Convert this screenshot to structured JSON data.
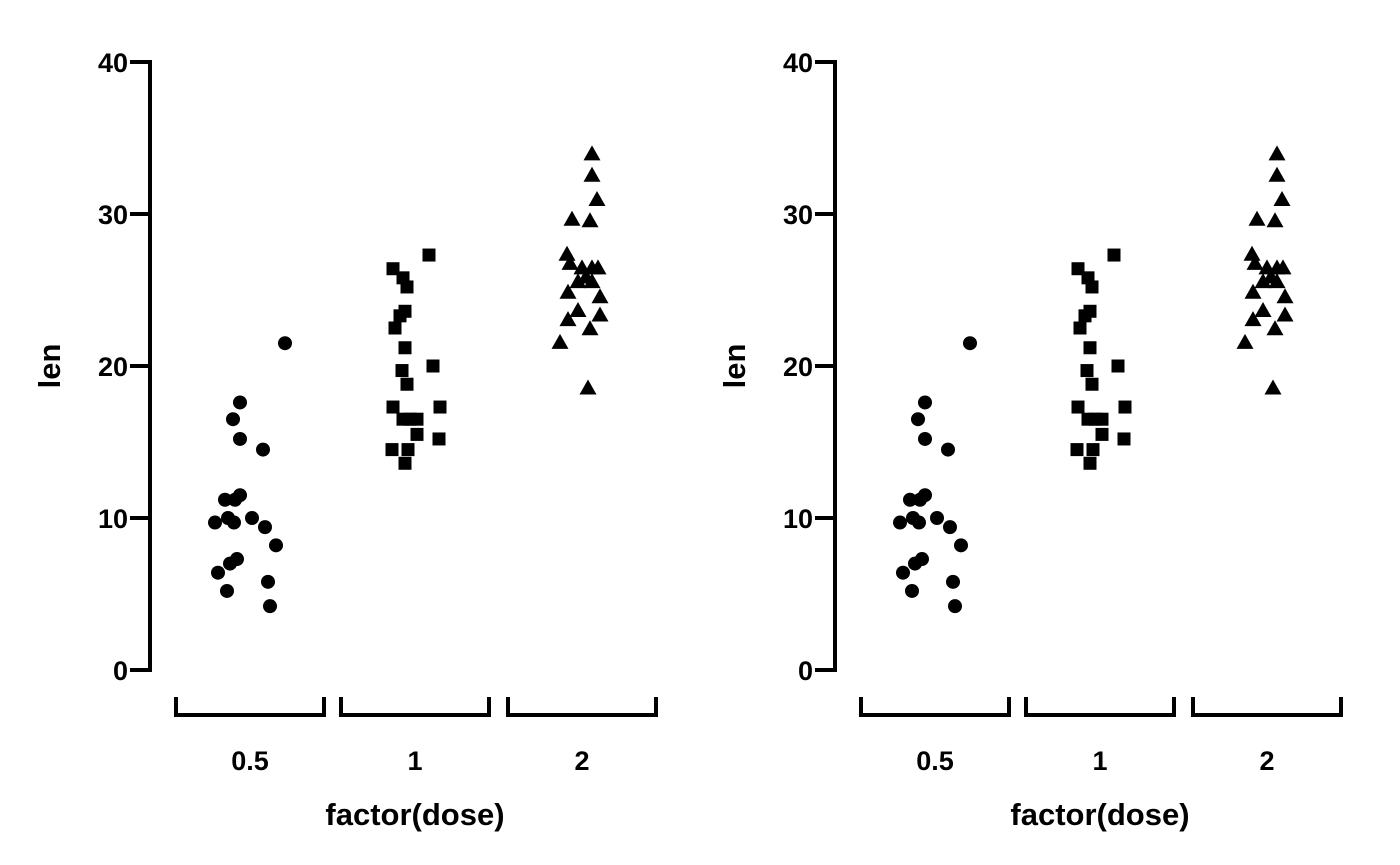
{
  "chart_data": [
    {
      "type": "scatter",
      "xlabel": "factor(dose)",
      "ylabel": "len",
      "categories": [
        "0.5",
        "1",
        "2"
      ],
      "ylim": [
        0,
        40
      ],
      "yticks": [
        0,
        10,
        20,
        30,
        40
      ],
      "ytick_labels": [
        "0",
        "10",
        "20",
        "30",
        "40"
      ],
      "grid": false,
      "series": [
        {
          "category": "0.5",
          "marker": "circle",
          "points": [
            {
              "jitter": 0.35,
              "y": 21.5
            },
            {
              "jitter": -0.1,
              "y": 17.6
            },
            {
              "jitter": -0.17,
              "y": 16.5
            },
            {
              "jitter": -0.1,
              "y": 15.2
            },
            {
              "jitter": 0.13,
              "y": 14.5
            },
            {
              "jitter": -0.1,
              "y": 11.5
            },
            {
              "jitter": -0.15,
              "y": 11.2
            },
            {
              "jitter": -0.25,
              "y": 11.2
            },
            {
              "jitter": -0.35,
              "y": 9.7
            },
            {
              "jitter": -0.22,
              "y": 10.0
            },
            {
              "jitter": -0.16,
              "y": 9.7
            },
            {
              "jitter": 0.02,
              "y": 10.0
            },
            {
              "jitter": 0.15,
              "y": 9.4
            },
            {
              "jitter": 0.26,
              "y": 8.2
            },
            {
              "jitter": -0.13,
              "y": 7.3
            },
            {
              "jitter": -0.2,
              "y": 7.0
            },
            {
              "jitter": -0.32,
              "y": 6.4
            },
            {
              "jitter": 0.18,
              "y": 5.8
            },
            {
              "jitter": -0.23,
              "y": 5.2
            },
            {
              "jitter": 0.2,
              "y": 4.2
            }
          ]
        },
        {
          "category": "1",
          "marker": "square",
          "points": [
            {
              "jitter": 0.14,
              "y": 27.3
            },
            {
              "jitter": -0.22,
              "y": 26.4
            },
            {
              "jitter": -0.12,
              "y": 25.8
            },
            {
              "jitter": -0.08,
              "y": 25.2
            },
            {
              "jitter": -0.1,
              "y": 23.6
            },
            {
              "jitter": -0.15,
              "y": 23.3
            },
            {
              "jitter": -0.2,
              "y": 22.5
            },
            {
              "jitter": -0.1,
              "y": 21.2
            },
            {
              "jitter": 0.18,
              "y": 20.0
            },
            {
              "jitter": -0.13,
              "y": 19.7
            },
            {
              "jitter": -0.08,
              "y": 18.8
            },
            {
              "jitter": -0.22,
              "y": 17.3
            },
            {
              "jitter": 0.25,
              "y": 17.3
            },
            {
              "jitter": -0.12,
              "y": 16.5
            },
            {
              "jitter": -0.05,
              "y": 16.5
            },
            {
              "jitter": 0.02,
              "y": 16.5
            },
            {
              "jitter": 0.02,
              "y": 15.5
            },
            {
              "jitter": 0.24,
              "y": 15.2
            },
            {
              "jitter": -0.23,
              "y": 14.5
            },
            {
              "jitter": -0.07,
              "y": 14.5
            },
            {
              "jitter": -0.1,
              "y": 13.6
            }
          ]
        },
        {
          "category": "2",
          "marker": "triangle",
          "points": [
            {
              "jitter": 0.1,
              "y": 33.9
            },
            {
              "jitter": 0.1,
              "y": 32.5
            },
            {
              "jitter": 0.15,
              "y": 30.9
            },
            {
              "jitter": -0.1,
              "y": 29.6
            },
            {
              "jitter": 0.08,
              "y": 29.5
            },
            {
              "jitter": -0.15,
              "y": 27.3
            },
            {
              "jitter": -0.12,
              "y": 26.7
            },
            {
              "jitter": 0.0,
              "y": 26.4
            },
            {
              "jitter": 0.1,
              "y": 26.4
            },
            {
              "jitter": 0.16,
              "y": 26.4
            },
            {
              "jitter": 0.04,
              "y": 25.8
            },
            {
              "jitter": -0.04,
              "y": 25.5
            },
            {
              "jitter": 0.1,
              "y": 25.5
            },
            {
              "jitter": -0.14,
              "y": 24.8
            },
            {
              "jitter": 0.18,
              "y": 24.5
            },
            {
              "jitter": -0.04,
              "y": 23.6
            },
            {
              "jitter": 0.18,
              "y": 23.3
            },
            {
              "jitter": -0.14,
              "y": 23.0
            },
            {
              "jitter": 0.08,
              "y": 22.4
            },
            {
              "jitter": -0.22,
              "y": 21.5
            },
            {
              "jitter": 0.06,
              "y": 18.5
            }
          ]
        }
      ]
    },
    {
      "type": "scatter",
      "xlabel": "factor(dose)",
      "ylabel": "len",
      "categories": [
        "0.5",
        "1",
        "2"
      ],
      "ylim": [
        0,
        40
      ],
      "yticks": [
        0,
        10,
        20,
        30,
        40
      ],
      "ytick_labels": [
        "0",
        "10",
        "20",
        "30",
        "40"
      ],
      "grid": false,
      "series": [
        {
          "category": "0.5",
          "marker": "circle",
          "points": [
            {
              "jitter": 0.35,
              "y": 21.5
            },
            {
              "jitter": -0.1,
              "y": 17.6
            },
            {
              "jitter": -0.17,
              "y": 16.5
            },
            {
              "jitter": -0.1,
              "y": 15.2
            },
            {
              "jitter": 0.13,
              "y": 14.5
            },
            {
              "jitter": -0.1,
              "y": 11.5
            },
            {
              "jitter": -0.15,
              "y": 11.2
            },
            {
              "jitter": -0.25,
              "y": 11.2
            },
            {
              "jitter": -0.35,
              "y": 9.7
            },
            {
              "jitter": -0.22,
              "y": 10.0
            },
            {
              "jitter": -0.16,
              "y": 9.7
            },
            {
              "jitter": 0.02,
              "y": 10.0
            },
            {
              "jitter": 0.15,
              "y": 9.4
            },
            {
              "jitter": 0.26,
              "y": 8.2
            },
            {
              "jitter": -0.13,
              "y": 7.3
            },
            {
              "jitter": -0.2,
              "y": 7.0
            },
            {
              "jitter": -0.32,
              "y": 6.4
            },
            {
              "jitter": 0.18,
              "y": 5.8
            },
            {
              "jitter": -0.23,
              "y": 5.2
            },
            {
              "jitter": 0.2,
              "y": 4.2
            }
          ]
        },
        {
          "category": "1",
          "marker": "square",
          "points": [
            {
              "jitter": 0.14,
              "y": 27.3
            },
            {
              "jitter": -0.22,
              "y": 26.4
            },
            {
              "jitter": -0.12,
              "y": 25.8
            },
            {
              "jitter": -0.08,
              "y": 25.2
            },
            {
              "jitter": -0.1,
              "y": 23.6
            },
            {
              "jitter": -0.15,
              "y": 23.3
            },
            {
              "jitter": -0.2,
              "y": 22.5
            },
            {
              "jitter": -0.1,
              "y": 21.2
            },
            {
              "jitter": 0.18,
              "y": 20.0
            },
            {
              "jitter": -0.13,
              "y": 19.7
            },
            {
              "jitter": -0.08,
              "y": 18.8
            },
            {
              "jitter": -0.22,
              "y": 17.3
            },
            {
              "jitter": 0.25,
              "y": 17.3
            },
            {
              "jitter": -0.12,
              "y": 16.5
            },
            {
              "jitter": -0.05,
              "y": 16.5
            },
            {
              "jitter": 0.02,
              "y": 16.5
            },
            {
              "jitter": 0.02,
              "y": 15.5
            },
            {
              "jitter": 0.24,
              "y": 15.2
            },
            {
              "jitter": -0.23,
              "y": 14.5
            },
            {
              "jitter": -0.07,
              "y": 14.5
            },
            {
              "jitter": -0.1,
              "y": 13.6
            }
          ]
        },
        {
          "category": "2",
          "marker": "triangle",
          "points": [
            {
              "jitter": 0.1,
              "y": 33.9
            },
            {
              "jitter": 0.1,
              "y": 32.5
            },
            {
              "jitter": 0.15,
              "y": 30.9
            },
            {
              "jitter": -0.1,
              "y": 29.6
            },
            {
              "jitter": 0.08,
              "y": 29.5
            },
            {
              "jitter": -0.15,
              "y": 27.3
            },
            {
              "jitter": -0.12,
              "y": 26.7
            },
            {
              "jitter": 0.0,
              "y": 26.4
            },
            {
              "jitter": 0.1,
              "y": 26.4
            },
            {
              "jitter": 0.16,
              "y": 26.4
            },
            {
              "jitter": 0.04,
              "y": 25.8
            },
            {
              "jitter": -0.04,
              "y": 25.5
            },
            {
              "jitter": 0.1,
              "y": 25.5
            },
            {
              "jitter": -0.14,
              "y": 24.8
            },
            {
              "jitter": 0.18,
              "y": 24.5
            },
            {
              "jitter": -0.04,
              "y": 23.6
            },
            {
              "jitter": 0.18,
              "y": 23.3
            },
            {
              "jitter": -0.14,
              "y": 23.0
            },
            {
              "jitter": 0.08,
              "y": 22.4
            },
            {
              "jitter": -0.22,
              "y": 21.5
            },
            {
              "jitter": 0.06,
              "y": 18.5
            }
          ]
        }
      ]
    }
  ]
}
